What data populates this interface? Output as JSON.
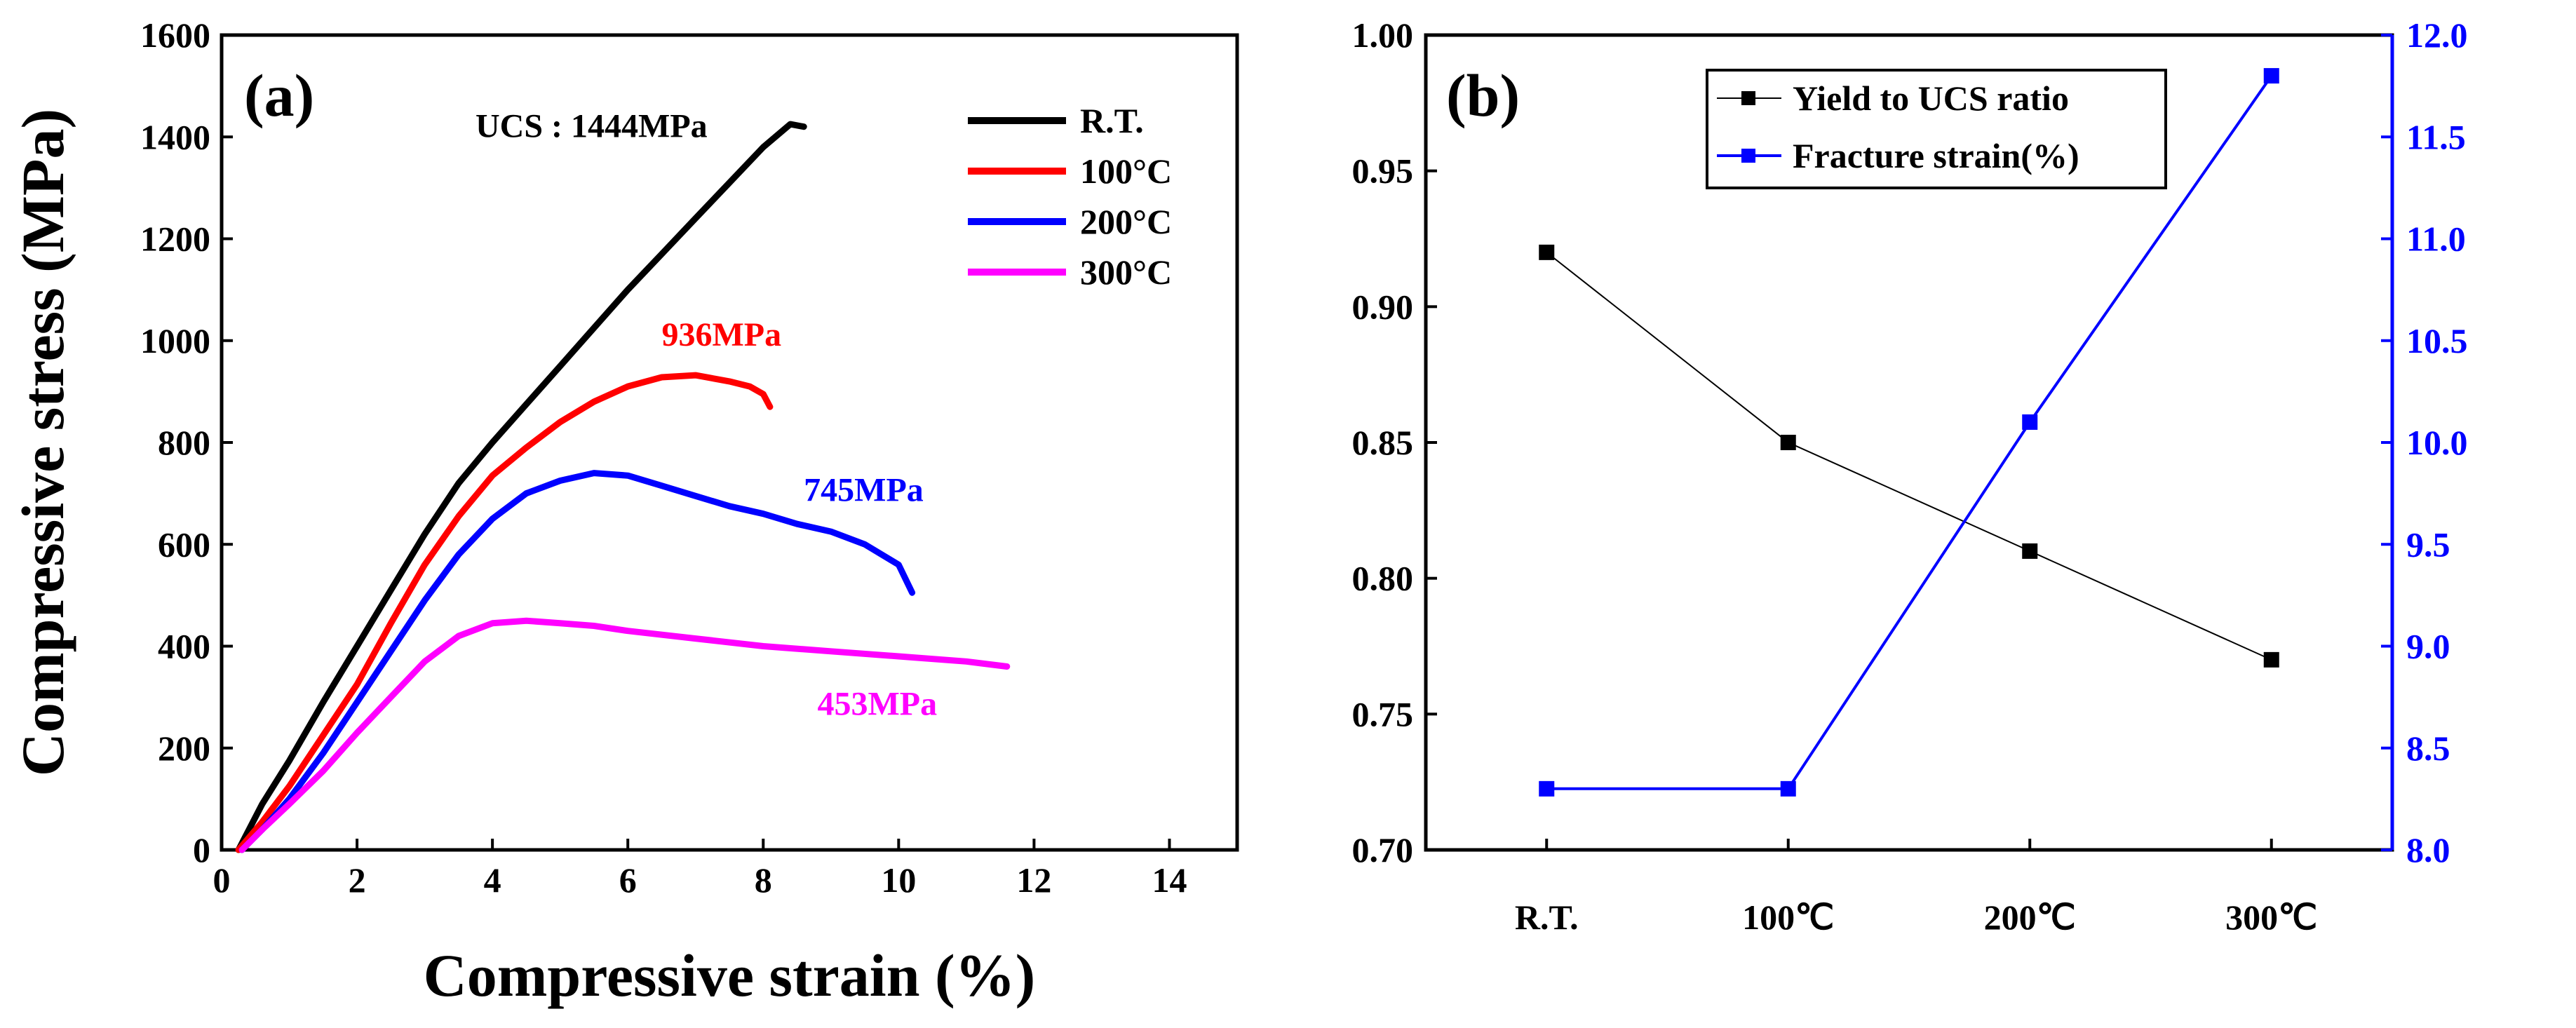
{
  "chart_data": [
    {
      "panel": "(a)",
      "type": "line",
      "xlabel": "Compressive strain (%)",
      "ylabel": "Compressive stress (MPa)",
      "xlim": [
        0,
        15
      ],
      "ylim": [
        0,
        1600
      ],
      "xticks": [
        "0",
        "2",
        "4",
        "6",
        "8",
        "10",
        "12",
        "14"
      ],
      "yticks": [
        "0",
        "200",
        "400",
        "600",
        "800",
        "1000",
        "1200",
        "1400",
        "1600"
      ],
      "legend_placement": "top-right",
      "series": [
        {
          "name": "R.T.",
          "color": "#000000",
          "x": [
            0.25,
            0.6,
            1.0,
            1.5,
            2.0,
            2.5,
            3.0,
            3.5,
            4.0,
            4.5,
            5.0,
            5.5,
            6.0,
            6.5,
            7.0,
            7.5,
            8.0,
            8.4,
            8.6
          ],
          "y": [
            0,
            90,
            175,
            290,
            400,
            510,
            620,
            720,
            800,
            875,
            950,
            1025,
            1100,
            1170,
            1240,
            1310,
            1380,
            1425,
            1420
          ]
        },
        {
          "name": "100°C",
          "color": "#ff0000",
          "x": [
            0.25,
            0.6,
            1.0,
            1.5,
            2.0,
            2.5,
            3.0,
            3.5,
            4.0,
            4.5,
            5.0,
            5.5,
            6.0,
            6.5,
            7.0,
            7.5,
            7.8,
            8.0,
            8.1
          ],
          "y": [
            0,
            55,
            125,
            225,
            325,
            445,
            560,
            655,
            735,
            790,
            840,
            880,
            910,
            928,
            932,
            920,
            910,
            895,
            870
          ]
        },
        {
          "name": "200°C",
          "color": "#0000ff",
          "x": [
            0.3,
            0.6,
            1.0,
            1.5,
            2.0,
            2.5,
            3.0,
            3.5,
            4.0,
            4.5,
            5.0,
            5.5,
            6.0,
            6.5,
            7.0,
            7.5,
            8.0,
            8.5,
            9.0,
            9.5,
            10.0,
            10.2
          ],
          "y": [
            0,
            40,
            100,
            190,
            290,
            390,
            490,
            580,
            650,
            700,
            725,
            740,
            735,
            715,
            695,
            675,
            660,
            640,
            625,
            600,
            560,
            505
          ]
        },
        {
          "name": "300°C",
          "color": "#ff00ff",
          "x": [
            0.3,
            0.6,
            1.0,
            1.5,
            2.0,
            2.5,
            3.0,
            3.5,
            4.0,
            4.5,
            5.0,
            5.5,
            6.0,
            7.0,
            8.0,
            9.0,
            10.0,
            11.0,
            11.6
          ],
          "y": [
            0,
            40,
            90,
            155,
            230,
            300,
            370,
            420,
            445,
            450,
            445,
            440,
            430,
            415,
            400,
            390,
            380,
            370,
            360
          ]
        }
      ],
      "annotations": [
        {
          "text": "UCS : 1444MPa",
          "color": "#000000",
          "x": 3.75,
          "y": 1400
        },
        {
          "text": "936MPa",
          "color": "#ff0000",
          "x": 6.5,
          "y": 990
        },
        {
          "text": "745MPa",
          "color": "#0000ff",
          "x": 8.6,
          "y": 685
        },
        {
          "text": "453MPa",
          "color": "#ff00ff",
          "x": 8.8,
          "y": 265
        }
      ]
    },
    {
      "panel": "(b)",
      "type": "line",
      "categories": [
        "R.T.",
        "100℃",
        "200℃",
        "300℃"
      ],
      "ylim": [
        0.7,
        1.0
      ],
      "yticks": [
        "0.70",
        "0.75",
        "0.80",
        "0.85",
        "0.90",
        "0.95",
        "1.00"
      ],
      "y2lim": [
        8.0,
        12.0
      ],
      "y2ticks": [
        "8.0",
        "8.5",
        "9.0",
        "9.5",
        "10.0",
        "10.5",
        "11.0",
        "11.5",
        "12.0"
      ],
      "y2_color": "#0000ff",
      "legend_placement": "top-center",
      "series": [
        {
          "name": "Yield to UCS ratio",
          "color": "#000000",
          "axis": "left",
          "values": [
            0.92,
            0.85,
            0.81,
            0.77
          ]
        },
        {
          "name": "Fracture strain(%)",
          "color": "#0000ff",
          "axis": "right",
          "values": [
            8.3,
            8.3,
            10.1,
            11.8
          ]
        }
      ]
    }
  ]
}
